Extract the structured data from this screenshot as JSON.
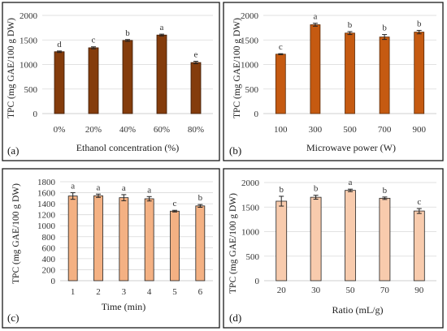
{
  "chart_data": [
    {
      "type": "bar",
      "panel_label": "(a)",
      "xlabel": "Ethanol concentration (%)",
      "ylabel": "TPC (mg GAE/100 g DW)",
      "categories": [
        "0%",
        "20%",
        "40%",
        "60%",
        "80%"
      ],
      "values": [
        1260,
        1340,
        1490,
        1600,
        1040
      ],
      "errors": [
        15,
        20,
        18,
        18,
        25
      ],
      "letters": [
        "d",
        "c",
        "b",
        "a",
        "e"
      ],
      "yticks": [
        "0",
        "500",
        "1000",
        "1500",
        "2000"
      ],
      "ylim": [
        0,
        2000
      ],
      "grid": true,
      "color": "#843C0C",
      "edge": "#3b1a05"
    },
    {
      "type": "bar",
      "panel_label": "(b)",
      "xlabel": "Microwave power (W)",
      "ylabel": "TPC (mg GAE/100 g DW)",
      "categories": [
        "100",
        "300",
        "500",
        "700",
        "900"
      ],
      "values": [
        1210,
        1810,
        1640,
        1560,
        1660
      ],
      "errors": [
        10,
        30,
        30,
        50,
        35
      ],
      "letters": [
        "c",
        "a",
        "b",
        "b",
        "b"
      ],
      "yticks": [
        "0",
        "500",
        "1000",
        "1500",
        "2000"
      ],
      "ylim": [
        0,
        2000
      ],
      "grid": true,
      "color": "#C55A11",
      "edge": "#5a2a08"
    },
    {
      "type": "bar",
      "panel_label": "(c)",
      "xlabel": "Time (min)",
      "ylabel": "TPC (mg GAE/100 g DW)",
      "categories": [
        "1",
        "2",
        "3",
        "4",
        "5",
        "6"
      ],
      "values": [
        1540,
        1545,
        1510,
        1490,
        1265,
        1360
      ],
      "errors": [
        60,
        30,
        55,
        40,
        15,
        25
      ],
      "letters": [
        "a",
        "a",
        "a",
        "a",
        "c",
        "b"
      ],
      "yticks": [
        "0",
        "200",
        "400",
        "600",
        "800",
        "1000",
        "1200",
        "1400",
        "1600",
        "1800"
      ],
      "ylim": [
        0,
        1800
      ],
      "grid": true,
      "color": "#F4B183",
      "edge": "#222222"
    },
    {
      "type": "bar",
      "panel_label": "(d)",
      "xlabel": "Ratio (mL/g)",
      "ylabel": "TPC (mg GAE/100 g DW)",
      "categories": [
        "20",
        "30",
        "50",
        "70",
        "90"
      ],
      "values": [
        1620,
        1700,
        1840,
        1680,
        1420
      ],
      "errors": [
        100,
        40,
        25,
        25,
        50
      ],
      "letters": [
        "b",
        "b",
        "a",
        "b",
        "c"
      ],
      "yticks": [
        "0",
        "500",
        "1000",
        "1500",
        "2000"
      ],
      "ylim": [
        0,
        2000
      ],
      "grid": true,
      "color": "#F8CBAD",
      "edge": "#222222"
    }
  ]
}
